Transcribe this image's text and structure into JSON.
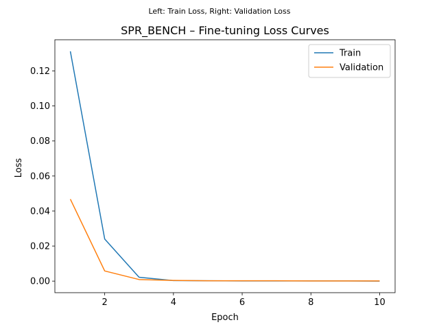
{
  "chart_data": {
    "type": "line",
    "suptitle": "Left: Train Loss, Right: Validation Loss",
    "title": "SPR_BENCH – Fine-tuning Loss Curves",
    "xlabel": "Epoch",
    "ylabel": "Loss",
    "x": [
      1,
      2,
      3,
      4,
      5,
      6,
      7,
      8,
      9,
      10
    ],
    "xlim": [
      0.55,
      10.45
    ],
    "ylim": [
      -0.0066,
      0.1378
    ],
    "xticks": [
      2,
      4,
      6,
      8,
      10
    ],
    "yticks": [
      0.0,
      0.02,
      0.04,
      0.06,
      0.08,
      0.1,
      0.12
    ],
    "xtick_labels": [
      "2",
      "4",
      "6",
      "8",
      "10"
    ],
    "ytick_labels": [
      "0.00",
      "0.02",
      "0.04",
      "0.06",
      "0.08",
      "0.10",
      "0.12"
    ],
    "grid": false,
    "legend_position": "top-right",
    "series": [
      {
        "name": "Train",
        "color": "#1f77b4",
        "values": [
          0.1312,
          0.024,
          0.0022,
          0.0003,
          0.0002,
          0.0001,
          0.0001,
          0.0001,
          0.0001,
          0.0
        ]
      },
      {
        "name": "Validation",
        "color": "#ff7f0e",
        "values": [
          0.0468,
          0.0058,
          0.0009,
          0.0004,
          0.0002,
          0.0002,
          0.0002,
          0.0001,
          0.0001,
          0.0001
        ]
      }
    ]
  }
}
